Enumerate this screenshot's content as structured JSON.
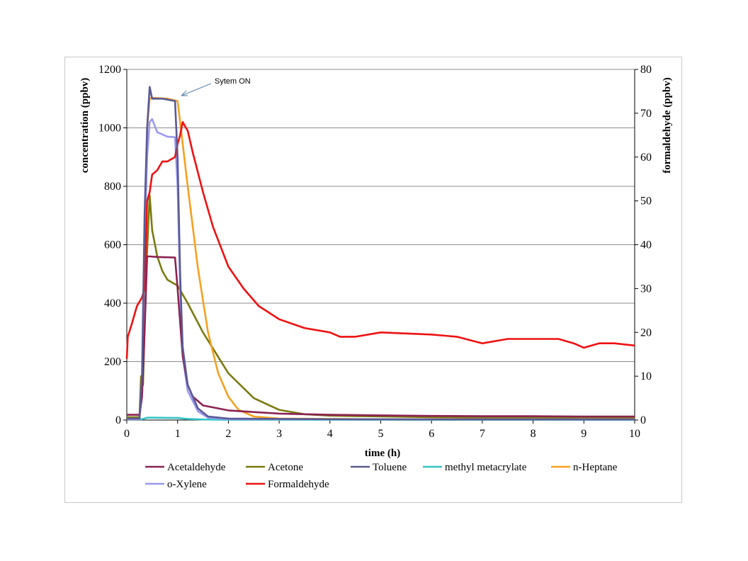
{
  "chart_data": {
    "type": "line",
    "title": "",
    "xlabel": "time (h)",
    "ylabel": "concentration (ppbv)",
    "y2label": "formaldehyde (ppbv)",
    "xlim": [
      0,
      10
    ],
    "ylim": [
      0,
      1200
    ],
    "y2lim": [
      0,
      80
    ],
    "x_ticks": [
      "0",
      "1",
      "2",
      "3",
      "4",
      "5",
      "6",
      "7",
      "8",
      "9",
      "10"
    ],
    "y_ticks": [
      "0",
      "200",
      "400",
      "600",
      "800",
      "1000",
      "1200"
    ],
    "y2_ticks": [
      "0",
      "10",
      "20",
      "30",
      "40",
      "50",
      "60",
      "70",
      "80"
    ],
    "grid": "horizontal",
    "legend_position": "bottom",
    "annotation": {
      "text": "Sytem ON",
      "x": 1.0,
      "y": 1100
    },
    "series": [
      {
        "name": "Acetaldehyde",
        "color": "#8B2252",
        "axis": "left",
        "points": [
          [
            0,
            18
          ],
          [
            0.25,
            18
          ],
          [
            0.3,
            80
          ],
          [
            0.35,
            300
          ],
          [
            0.4,
            560
          ],
          [
            0.45,
            560
          ],
          [
            0.6,
            558
          ],
          [
            0.95,
            556
          ],
          [
            1.0,
            450
          ],
          [
            1.1,
            220
          ],
          [
            1.2,
            120
          ],
          [
            1.3,
            80
          ],
          [
            1.5,
            50
          ],
          [
            2.0,
            33
          ],
          [
            3.0,
            22
          ],
          [
            4.0,
            18
          ],
          [
            5.0,
            16
          ],
          [
            6.0,
            14
          ],
          [
            7.0,
            13
          ],
          [
            8.0,
            13
          ],
          [
            9.0,
            12
          ],
          [
            10.0,
            12
          ]
        ]
      },
      {
        "name": "Acetone",
        "color": "#7A7A10",
        "axis": "left",
        "points": [
          [
            0,
            10
          ],
          [
            0.25,
            10
          ],
          [
            0.28,
            150
          ],
          [
            0.32,
            120
          ],
          [
            0.38,
            500
          ],
          [
            0.45,
            770
          ],
          [
            0.5,
            650
          ],
          [
            0.6,
            560
          ],
          [
            0.7,
            510
          ],
          [
            0.8,
            480
          ],
          [
            1.0,
            460
          ],
          [
            1.2,
            400
          ],
          [
            1.5,
            300
          ],
          [
            2.0,
            160
          ],
          [
            2.5,
            75
          ],
          [
            3.0,
            35
          ],
          [
            3.5,
            20
          ],
          [
            4.0,
            15
          ],
          [
            5.0,
            12
          ],
          [
            6.0,
            10
          ],
          [
            7.0,
            9
          ],
          [
            8.0,
            8
          ],
          [
            9.0,
            8
          ],
          [
            10.0,
            8
          ]
        ]
      },
      {
        "name": "Toluene",
        "color": "#5A5A95",
        "axis": "left",
        "points": [
          [
            0,
            5
          ],
          [
            0.25,
            5
          ],
          [
            0.3,
            150
          ],
          [
            0.35,
            700
          ],
          [
            0.4,
            1000
          ],
          [
            0.45,
            1140
          ],
          [
            0.5,
            1100
          ],
          [
            0.7,
            1100
          ],
          [
            0.95,
            1092
          ],
          [
            1.0,
            900
          ],
          [
            1.05,
            500
          ],
          [
            1.1,
            250
          ],
          [
            1.2,
            120
          ],
          [
            1.4,
            40
          ],
          [
            1.6,
            12
          ],
          [
            2.0,
            5
          ],
          [
            4.0,
            3
          ],
          [
            6.0,
            2
          ],
          [
            8.0,
            2
          ],
          [
            10.0,
            2
          ]
        ]
      },
      {
        "name": "methyl metacrylate",
        "color": "#33C5C5",
        "axis": "left",
        "points": [
          [
            0,
            3
          ],
          [
            0.3,
            3
          ],
          [
            0.4,
            8
          ],
          [
            0.5,
            8
          ],
          [
            1.0,
            7
          ],
          [
            1.2,
            4
          ],
          [
            1.5,
            2
          ],
          [
            2.0,
            1
          ],
          [
            10.0,
            1
          ]
        ]
      },
      {
        "name": "n-Heptane",
        "color": "#F5A020",
        "axis": "left",
        "points": [
          [
            0,
            5
          ],
          [
            0.25,
            5
          ],
          [
            0.3,
            100
          ],
          [
            0.35,
            600
          ],
          [
            0.4,
            1000
          ],
          [
            0.45,
            1100
          ],
          [
            0.5,
            1103
          ],
          [
            0.8,
            1100
          ],
          [
            1.0,
            1092
          ],
          [
            1.05,
            1020
          ],
          [
            1.2,
            800
          ],
          [
            1.4,
            520
          ],
          [
            1.6,
            300
          ],
          [
            1.8,
            160
          ],
          [
            2.0,
            80
          ],
          [
            2.2,
            35
          ],
          [
            2.5,
            12
          ],
          [
            3.0,
            5
          ],
          [
            5.0,
            3
          ],
          [
            10.0,
            3
          ]
        ]
      },
      {
        "name": "o-Xylene",
        "color": "#9999EE",
        "axis": "left",
        "points": [
          [
            0,
            3
          ],
          [
            0.25,
            3
          ],
          [
            0.3,
            100
          ],
          [
            0.35,
            600
          ],
          [
            0.4,
            900
          ],
          [
            0.45,
            1020
          ],
          [
            0.5,
            1030
          ],
          [
            0.6,
            985
          ],
          [
            0.8,
            970
          ],
          [
            0.95,
            968
          ],
          [
            1.0,
            800
          ],
          [
            1.05,
            450
          ],
          [
            1.1,
            220
          ],
          [
            1.2,
            100
          ],
          [
            1.4,
            30
          ],
          [
            1.6,
            8
          ],
          [
            2.0,
            3
          ],
          [
            10.0,
            2
          ]
        ]
      },
      {
        "name": "Formaldehyde",
        "color": "#EE1111",
        "axis": "right",
        "points": [
          [
            0,
            14
          ],
          [
            0.02,
            19
          ],
          [
            0.1,
            22
          ],
          [
            0.2,
            26
          ],
          [
            0.3,
            28
          ],
          [
            0.35,
            30
          ],
          [
            0.4,
            50
          ],
          [
            0.45,
            52
          ],
          [
            0.5,
            56
          ],
          [
            0.6,
            57
          ],
          [
            0.7,
            59
          ],
          [
            0.8,
            59
          ],
          [
            0.95,
            60
          ],
          [
            1.0,
            63
          ],
          [
            1.05,
            65
          ],
          [
            1.1,
            68
          ],
          [
            1.2,
            66
          ],
          [
            1.3,
            61
          ],
          [
            1.5,
            52
          ],
          [
            1.7,
            44
          ],
          [
            2.0,
            35
          ],
          [
            2.3,
            30
          ],
          [
            2.6,
            26
          ],
          [
            3.0,
            23
          ],
          [
            3.5,
            21
          ],
          [
            4.0,
            20
          ],
          [
            4.2,
            19
          ],
          [
            4.5,
            19
          ],
          [
            5.0,
            20
          ],
          [
            6.0,
            19.5
          ],
          [
            6.5,
            19
          ],
          [
            7.0,
            17.5
          ],
          [
            7.5,
            18.5
          ],
          [
            8.0,
            18.5
          ],
          [
            8.5,
            18.5
          ],
          [
            8.8,
            17.5
          ],
          [
            9.0,
            16.5
          ],
          [
            9.3,
            17.5
          ],
          [
            9.6,
            17.5
          ],
          [
            10.0,
            17
          ]
        ]
      }
    ]
  }
}
